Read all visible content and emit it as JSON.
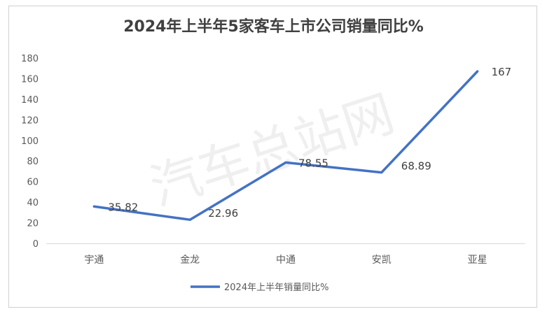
{
  "chart_data": {
    "type": "line",
    "title": "2024年上半年5家客车上市公司销量同比%",
    "categories": [
      "宇通",
      "金龙",
      "中通",
      "安凯",
      "亚星"
    ],
    "series": [
      {
        "name": "2024年上半年销量同比%",
        "values": [
          35.82,
          22.96,
          78.55,
          68.89,
          167
        ],
        "data_labels": [
          "35.82",
          "22.96",
          "78.55",
          "68.89",
          "167"
        ],
        "color": "#4472c4"
      }
    ],
    "ylim": [
      0,
      180
    ],
    "yticks": [
      0,
      20,
      40,
      60,
      80,
      100,
      120,
      140,
      160,
      180
    ],
    "grid": false,
    "legend": "bottom",
    "watermark": "汽车总站网"
  }
}
